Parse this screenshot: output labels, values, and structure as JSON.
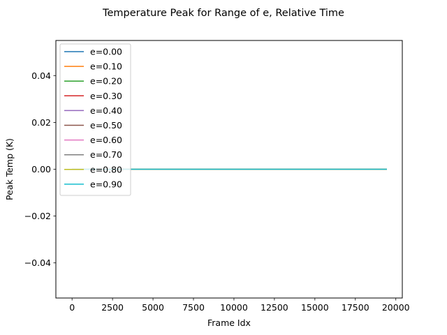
{
  "chart_data": {
    "type": "line",
    "title": "Temperature Peak for Range of e, Relative Time",
    "xlabel": "Frame Idx",
    "ylabel": "Peak Temp (K)",
    "xlim": [
      -1000,
      20400
    ],
    "ylim": [
      -0.055,
      0.055
    ],
    "xticks": [
      0,
      2500,
      5000,
      7500,
      10000,
      12500,
      15000,
      17500,
      20000
    ],
    "xtick_labels": [
      "0",
      "2500",
      "5000",
      "7500",
      "10000",
      "12500",
      "15000",
      "17500",
      "20000"
    ],
    "yticks": [
      -0.04,
      -0.02,
      0.0,
      0.02,
      0.04
    ],
    "ytick_labels": [
      "−0.04",
      "−0.02",
      "0.00",
      "0.02",
      "0.04"
    ],
    "grid": false,
    "legend_position": "upper-left",
    "series": [
      {
        "name": "e=0.00",
        "color": "#1f77b4",
        "x": [
          0,
          19450
        ],
        "y": [
          0,
          0
        ]
      },
      {
        "name": "e=0.10",
        "color": "#ff7f0e",
        "x": [
          0,
          19450
        ],
        "y": [
          0,
          0
        ]
      },
      {
        "name": "e=0.20",
        "color": "#2ca02c",
        "x": [
          0,
          19450
        ],
        "y": [
          0,
          0
        ]
      },
      {
        "name": "e=0.30",
        "color": "#d62728",
        "x": [
          0,
          19450
        ],
        "y": [
          0,
          0
        ]
      },
      {
        "name": "e=0.40",
        "color": "#9467bd",
        "x": [
          0,
          19450
        ],
        "y": [
          0,
          0
        ]
      },
      {
        "name": "e=0.50",
        "color": "#8c564b",
        "x": [
          0,
          19450
        ],
        "y": [
          0,
          0
        ]
      },
      {
        "name": "e=0.60",
        "color": "#e377c2",
        "x": [
          0,
          19450
        ],
        "y": [
          0,
          0
        ]
      },
      {
        "name": "e=0.70",
        "color": "#7f7f7f",
        "x": [
          0,
          19450
        ],
        "y": [
          0,
          0
        ]
      },
      {
        "name": "e=0.80",
        "color": "#bcbd22",
        "x": [
          0,
          19450
        ],
        "y": [
          0,
          0
        ]
      },
      {
        "name": "e=0.90",
        "color": "#17becf",
        "x": [
          0,
          19450
        ],
        "y": [
          0,
          0
        ]
      }
    ]
  }
}
